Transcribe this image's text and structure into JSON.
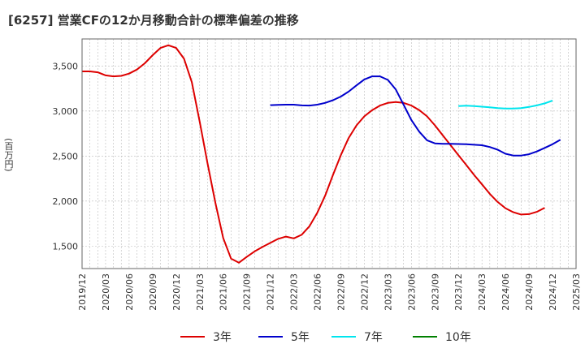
{
  "title": "[6257]  営業CFの12か月移動合計の標準偏差の推移",
  "chart_data": {
    "type": "line",
    "title": "[6257]  営業CFの12か月移動合計の標準偏差の推移",
    "ylabel": "(百万円)",
    "xlabel": "",
    "ylim": [
      1250,
      3800
    ],
    "yticks": [
      1500,
      2000,
      2500,
      3000,
      3500
    ],
    "ytick_labels": [
      "1,500",
      "2,000",
      "2,500",
      "3,000",
      "3,500"
    ],
    "xticks": [
      "2019/12",
      "2020/03",
      "2020/06",
      "2020/09",
      "2020/12",
      "2021/03",
      "2021/06",
      "2021/09",
      "2021/12",
      "2022/03",
      "2022/06",
      "2022/09",
      "2022/12",
      "2023/03",
      "2023/06",
      "2023/09",
      "2023/12",
      "2024/03",
      "2024/06",
      "2024/09",
      "2024/12",
      "2025/03"
    ],
    "grid": true,
    "legend_position": "bottom",
    "series": [
      {
        "name": "3年",
        "color": "#dd0000",
        "start_index": 0,
        "values": [
          3440,
          3440,
          3430,
          3395,
          3385,
          3390,
          3415,
          3460,
          3530,
          3620,
          3700,
          3730,
          3700,
          3580,
          3320,
          2880,
          2420,
          1980,
          1590,
          1360,
          1315,
          1380,
          1440,
          1490,
          1535,
          1580,
          1605,
          1585,
          1625,
          1720,
          1870,
          2060,
          2290,
          2510,
          2700,
          2840,
          2940,
          3010,
          3060,
          3090,
          3100,
          3090,
          3060,
          3010,
          2940,
          2840,
          2730,
          2620,
          2510,
          2400,
          2290,
          2185,
          2080,
          1990,
          1920,
          1875,
          1850,
          1855,
          1880,
          1925
        ]
      },
      {
        "name": "5年",
        "color": "#0000cc",
        "start_index": 24,
        "values": [
          3065,
          3068,
          3070,
          3070,
          3062,
          3060,
          3070,
          3090,
          3120,
          3160,
          3215,
          3285,
          3350,
          3385,
          3385,
          3345,
          3240,
          3070,
          2900,
          2770,
          2675,
          2640,
          2635,
          2635,
          2633,
          2630,
          2625,
          2620,
          2600,
          2570,
          2525,
          2505,
          2505,
          2520,
          2550,
          2590,
          2630,
          2680
        ]
      },
      {
        "name": "7年",
        "color": "#00e5ee",
        "start_index": 48,
        "values": [
          3055,
          3058,
          3055,
          3048,
          3040,
          3032,
          3027,
          3027,
          3032,
          3045,
          3062,
          3085,
          3115
        ]
      },
      {
        "name": "10年",
        "color": "#008000",
        "start_index": 0,
        "values": []
      }
    ]
  }
}
